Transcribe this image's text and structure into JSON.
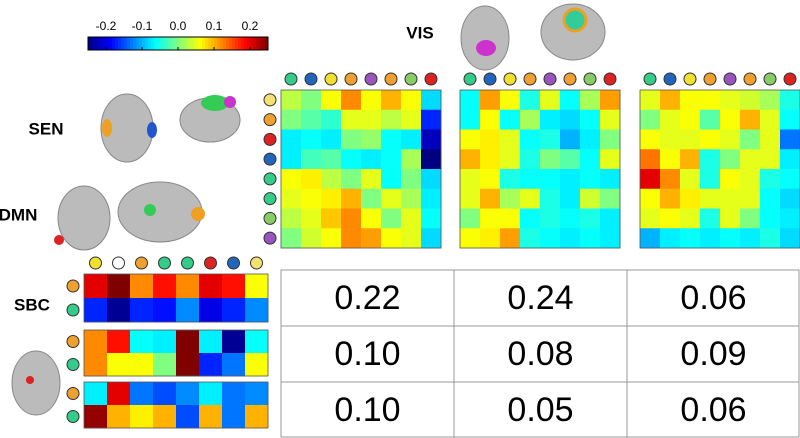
{
  "labels": {
    "vis": "VIS",
    "sen": "SEN",
    "dmn": "DMN",
    "sbc": "SBC"
  },
  "colorbar": {
    "lim": [
      -0.25,
      0.25
    ],
    "ticks": [
      -0.2,
      -0.1,
      {
        "value": 0,
        "label": "0.0"
      },
      0.1,
      0.2
    ]
  },
  "chart_data": [
    {
      "type": "heatmap",
      "col_colors": [
        "#33cc88",
        "#2266bb",
        "#f0e030",
        "#f0a030",
        "#9955bb",
        "#f0a030",
        "#88cc66",
        "#dd2222"
      ],
      "row_colors": [
        "#f5e070",
        "#f0a030",
        "#dd2222",
        "#2266bb",
        "#33cc88",
        "#33cc88",
        "#88cc66",
        "#9955bb"
      ],
      "values": [
        [
          0.03,
          0.0,
          0.06,
          0.12,
          0.06,
          0.1,
          0.06,
          -0.08
        ],
        [
          0.0,
          -0.02,
          -0.04,
          0.05,
          0.05,
          0.03,
          0.05,
          -0.17
        ],
        [
          -0.07,
          -0.06,
          -0.07,
          0.0,
          0.01,
          -0.06,
          -0.07,
          -0.22
        ],
        [
          -0.07,
          -0.03,
          -0.02,
          -0.06,
          -0.07,
          -0.06,
          0.02,
          -0.25
        ],
        [
          0.06,
          0.07,
          0.03,
          0.0,
          0.05,
          -0.06,
          0.0,
          -0.08
        ],
        [
          0.05,
          0.06,
          0.07,
          0.1,
          0.0,
          0.05,
          0.02,
          -0.07
        ],
        [
          0.03,
          0.05,
          0.09,
          0.12,
          0.06,
          0.0,
          0.05,
          -0.06
        ],
        [
          0.0,
          0.04,
          0.06,
          0.12,
          0.11,
          0.06,
          0.05,
          -0.08
        ]
      ]
    },
    {
      "type": "heatmap",
      "col_colors": [
        "#33cc88",
        "#2266bb",
        "#f0e030",
        "#f0a030",
        "#9955bb",
        "#f0a030",
        "#88cc66",
        "#dd2222"
      ],
      "values": [
        [
          -0.06,
          0.11,
          0.06,
          -0.05,
          0.05,
          -0.06,
          0.02,
          0.11
        ],
        [
          -0.06,
          0.06,
          -0.06,
          0.02,
          -0.07,
          -0.08,
          -0.06,
          0.05
        ],
        [
          0.06,
          0.07,
          0.05,
          -0.06,
          -0.05,
          -0.1,
          -0.07,
          0.0
        ],
        [
          0.1,
          0.07,
          0.05,
          -0.05,
          0.0,
          -0.02,
          -0.06,
          0.05
        ],
        [
          0.05,
          0.06,
          -0.05,
          -0.06,
          -0.06,
          -0.07,
          -0.06,
          -0.07
        ],
        [
          0.05,
          0.1,
          0.02,
          0.05,
          -0.05,
          -0.07,
          0.04,
          0.0
        ],
        [
          0.0,
          0.06,
          0.06,
          -0.06,
          -0.05,
          -0.06,
          -0.05,
          -0.07
        ],
        [
          0.06,
          0.07,
          0.11,
          -0.05,
          -0.06,
          -0.07,
          -0.06,
          -0.07
        ]
      ]
    },
    {
      "type": "heatmap",
      "col_colors": [
        "#33cc88",
        "#2266bb",
        "#f0e030",
        "#f0a030",
        "#9955bb",
        "#f0a030",
        "#88cc66",
        "#dd2222"
      ],
      "values": [
        [
          0.05,
          0.1,
          0.06,
          0.06,
          0.05,
          0.04,
          0.02,
          -0.05
        ],
        [
          0.0,
          0.05,
          0.06,
          -0.02,
          0.06,
          0.1,
          0.05,
          -0.06
        ],
        [
          0.06,
          0.05,
          0.05,
          0.06,
          0.05,
          0.0,
          0.05,
          -0.13
        ],
        [
          0.13,
          0.06,
          0.1,
          -0.05,
          0.0,
          0.05,
          0.05,
          -0.07
        ],
        [
          0.2,
          0.12,
          0.05,
          -0.05,
          0.06,
          0.05,
          -0.05,
          -0.06
        ],
        [
          0.06,
          0.1,
          0.07,
          0.05,
          0.05,
          0.05,
          -0.06,
          -0.08
        ],
        [
          0.05,
          0.06,
          0.05,
          -0.05,
          0.05,
          0.0,
          -0.06,
          -0.07
        ],
        [
          -0.1,
          -0.07,
          -0.06,
          -0.07,
          -0.06,
          -0.07,
          -0.05,
          -0.08
        ]
      ]
    },
    {
      "type": "heatmap",
      "col_colors": [
        "#f0e030",
        "#ffffff",
        "#f0a030",
        "#33cc88",
        "#33cc88",
        "#dd2222",
        "#2266bb",
        "#f5e070"
      ],
      "row_colors": [
        "#f0a030",
        "#33cc88"
      ],
      "values": [
        [
          0.2,
          0.25,
          0.12,
          0.18,
          0.12,
          0.2,
          0.18,
          0.06
        ],
        [
          -0.17,
          -0.24,
          -0.17,
          -0.18,
          -0.12,
          -0.2,
          -0.17,
          -0.12
        ]
      ]
    },
    {
      "type": "heatmap",
      "row_colors": [
        "#f0a030",
        "#33cc88"
      ],
      "values": [
        [
          0.12,
          0.18,
          -0.06,
          -0.07,
          0.25,
          -0.07,
          -0.24,
          -0.06
        ],
        [
          0.12,
          0.06,
          0.06,
          0.0,
          0.25,
          -0.17,
          -0.13,
          0.06
        ]
      ]
    },
    {
      "type": "heatmap",
      "row_colors": [
        "#f0a030",
        "#33cc88"
      ],
      "values": [
        [
          -0.07,
          0.2,
          -0.13,
          -0.15,
          -0.12,
          -0.07,
          -0.13,
          -0.12
        ],
        [
          0.24,
          0.1,
          0.07,
          0.1,
          -0.15,
          0.1,
          -0.13,
          0.1
        ]
      ]
    }
  ],
  "table": {
    "rows": [
      [
        "0.22",
        "0.24",
        "0.06"
      ],
      [
        "0.10",
        "0.08",
        "0.09"
      ],
      [
        "0.10",
        "0.05",
        "0.06"
      ]
    ]
  }
}
